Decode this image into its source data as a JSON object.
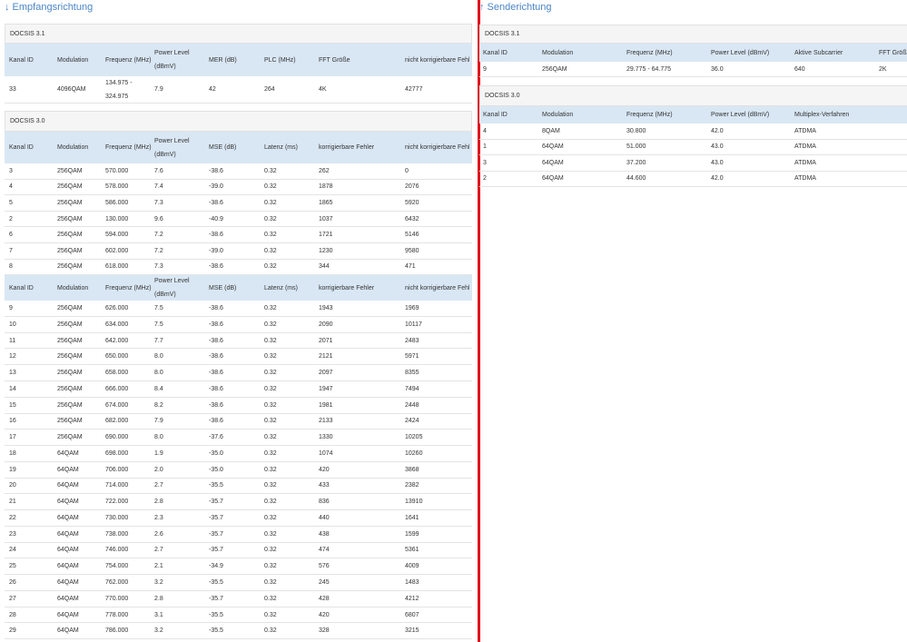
{
  "left": {
    "title": "↓ Empfangsrichtung",
    "docsis31": {
      "label": "DOCSIS 3.1",
      "header": [
        "Kanal ID",
        "Modulation",
        "Frequenz (MHz)",
        "Power Level (dBmV)",
        "MER (dB)",
        "PLC (MHz)",
        "FFT Größe",
        "nicht korrigierbare Fehler"
      ],
      "rows": [
        [
          "33",
          "4096QAM",
          "134.975 - 324.975",
          "7.9",
          "42",
          "264",
          "4K",
          "42777"
        ]
      ]
    },
    "docsis30": {
      "label": "DOCSIS 3.0",
      "header": [
        "Kanal ID",
        "Modulation",
        "Frequenz (MHz)",
        "Power Level (dBmV)",
        "MSE (dB)",
        "Latenz (ms)",
        "korrigierbare Fehler",
        "nicht korrigierbare Fehler"
      ],
      "rows": [
        [
          "3",
          "256QAM",
          "570.000",
          "7.6",
          "-38.6",
          "0.32",
          "262",
          "0"
        ],
        [
          "4",
          "256QAM",
          "578.000",
          "7.4",
          "-39.0",
          "0.32",
          "1878",
          "2076"
        ],
        [
          "5",
          "256QAM",
          "586.000",
          "7.3",
          "-38.6",
          "0.32",
          "1865",
          "5920"
        ],
        [
          "2",
          "256QAM",
          "130.000",
          "9.6",
          "-40.9",
          "0.32",
          "1037",
          "6432"
        ],
        [
          "6",
          "256QAM",
          "594.000",
          "7.2",
          "-38.6",
          "0.32",
          "1721",
          "5146"
        ],
        [
          "7",
          "256QAM",
          "602.000",
          "7.2",
          "-39.0",
          "0.32",
          "1230",
          "9580"
        ],
        [
          "8",
          "256QAM",
          "618.000",
          "7.3",
          "-38.6",
          "0.32",
          "344",
          "471"
        ],
        [
          "9",
          "256QAM",
          "626.000",
          "7.5",
          "-38.6",
          "0.32",
          "1943",
          "1969"
        ],
        [
          "10",
          "256QAM",
          "634.000",
          "7.5",
          "-38.6",
          "0.32",
          "2090",
          "10117"
        ],
        [
          "11",
          "256QAM",
          "642.000",
          "7.7",
          "-38.6",
          "0.32",
          "2071",
          "2483"
        ],
        [
          "12",
          "256QAM",
          "650.000",
          "8.0",
          "-38.6",
          "0.32",
          "2121",
          "5971"
        ],
        [
          "13",
          "256QAM",
          "658.000",
          "8.0",
          "-38.6",
          "0.32",
          "2097",
          "8355"
        ],
        [
          "14",
          "256QAM",
          "666.000",
          "8.4",
          "-38.6",
          "0.32",
          "1947",
          "7494"
        ],
        [
          "15",
          "256QAM",
          "674.000",
          "8.2",
          "-38.6",
          "0.32",
          "1981",
          "2448"
        ],
        [
          "16",
          "256QAM",
          "682.000",
          "7.9",
          "-38.6",
          "0.32",
          "2133",
          "2424"
        ],
        [
          "17",
          "256QAM",
          "690.000",
          "8.0",
          "-37.6",
          "0.32",
          "1330",
          "10205"
        ],
        [
          "18",
          "64QAM",
          "698.000",
          "1.9",
          "-35.0",
          "0.32",
          "1074",
          "10260"
        ],
        [
          "19",
          "64QAM",
          "706.000",
          "2.0",
          "-35.0",
          "0.32",
          "420",
          "3868"
        ],
        [
          "20",
          "64QAM",
          "714.000",
          "2.7",
          "-35.5",
          "0.32",
          "433",
          "2382"
        ],
        [
          "21",
          "64QAM",
          "722.000",
          "2.8",
          "-35.7",
          "0.32",
          "836",
          "13910"
        ],
        [
          "22",
          "64QAM",
          "730.000",
          "2.3",
          "-35.7",
          "0.32",
          "440",
          "1641"
        ],
        [
          "23",
          "64QAM",
          "738.000",
          "2.6",
          "-35.7",
          "0.32",
          "438",
          "1599"
        ],
        [
          "24",
          "64QAM",
          "746.000",
          "2.7",
          "-35.7",
          "0.32",
          "474",
          "5361"
        ],
        [
          "25",
          "64QAM",
          "754.000",
          "2.1",
          "-34.9",
          "0.32",
          "576",
          "4009"
        ],
        [
          "26",
          "64QAM",
          "762.000",
          "3.2",
          "-35.5",
          "0.32",
          "245",
          "1483"
        ],
        [
          "27",
          "64QAM",
          "770.000",
          "2.8",
          "-35.7",
          "0.32",
          "428",
          "4212"
        ],
        [
          "28",
          "64QAM",
          "778.000",
          "3.1",
          "-35.5",
          "0.32",
          "420",
          "6807"
        ],
        [
          "29",
          "64QAM",
          "786.000",
          "3.2",
          "-35.5",
          "0.32",
          "328",
          "3215"
        ]
      ]
    }
  },
  "right": {
    "title": "↑ Senderichtung",
    "docsis31": {
      "label": "DOCSIS 3.1",
      "header": [
        "Kanal ID",
        "Modulation",
        "Frequenz (MHz)",
        "Power Level (dBmV)",
        "Aktive Subcarrier",
        "FFT Größe"
      ],
      "rows": [
        [
          "9",
          "256QAM",
          "29.775 - 64.775",
          "36.0",
          "640",
          "2K"
        ]
      ]
    },
    "docsis30": {
      "label": "DOCSIS 3.0",
      "header": [
        "Kanal ID",
        "Modulation",
        "Frequenz (MHz)",
        "Power Level (dBmV)",
        "Multiplex-Verfahren"
      ],
      "rows": [
        [
          "4",
          "8QAM",
          "30.800",
          "42.0",
          "ATDMA"
        ],
        [
          "1",
          "64QAM",
          "51.000",
          "43.0",
          "ATDMA"
        ],
        [
          "3",
          "64QAM",
          "37.200",
          "43.0",
          "ATDMA"
        ],
        [
          "2",
          "64QAM",
          "44.600",
          "42.0",
          "ATDMA"
        ]
      ]
    }
  }
}
